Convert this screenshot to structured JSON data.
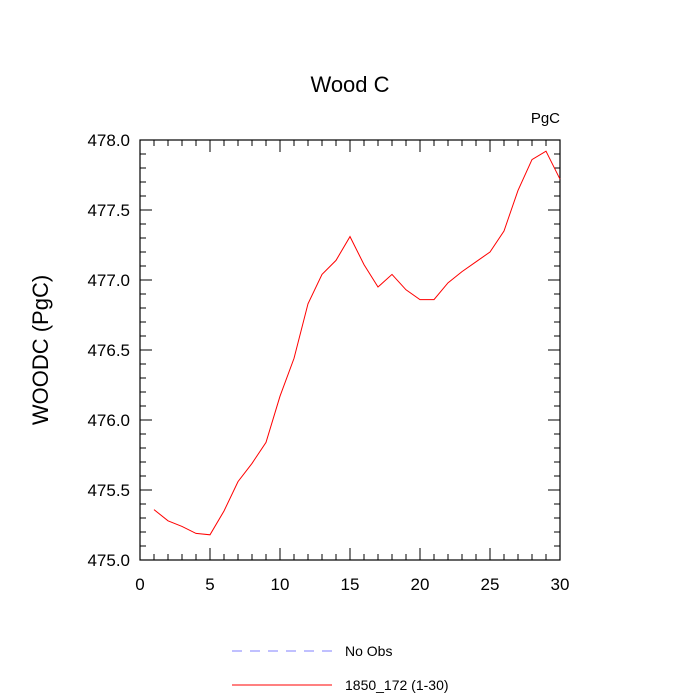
{
  "chart_data": {
    "type": "line",
    "title": "Wood C",
    "units_label": "PgC",
    "xlabel": "",
    "ylabel": "WOODC  (PgC)",
    "xlim": [
      0,
      30
    ],
    "ylim": [
      475.0,
      478.0
    ],
    "x_ticks": [
      0,
      5,
      10,
      15,
      20,
      25,
      30
    ],
    "y_ticks": [
      475.0,
      475.5,
      476.0,
      476.5,
      477.0,
      477.5,
      478.0
    ],
    "y_tick_labels": [
      "475.0",
      "475.5",
      "476.0",
      "476.5",
      "477.0",
      "477.5",
      "478.0"
    ],
    "grid": false,
    "legend_position": "bottom",
    "series": [
      {
        "name": "No Obs",
        "color": "#8080ff",
        "dash": true,
        "x": [],
        "values": []
      },
      {
        "name": "1850_172 (1-30)",
        "color": "#ff0000",
        "dash": false,
        "x": [
          1,
          2,
          3,
          4,
          5,
          6,
          7,
          8,
          9,
          10,
          11,
          12,
          13,
          14,
          15,
          16,
          17,
          18,
          19,
          20,
          21,
          22,
          23,
          24,
          25,
          26,
          27,
          28,
          29,
          30
        ],
        "values": [
          475.36,
          475.28,
          475.24,
          475.19,
          475.18,
          475.35,
          475.56,
          475.69,
          475.84,
          476.17,
          476.44,
          476.83,
          477.04,
          477.14,
          477.31,
          477.11,
          476.95,
          477.04,
          476.93,
          476.86,
          476.86,
          476.98,
          477.06,
          477.13,
          477.2,
          477.35,
          477.64,
          477.86,
          477.92,
          477.72
        ]
      }
    ]
  }
}
